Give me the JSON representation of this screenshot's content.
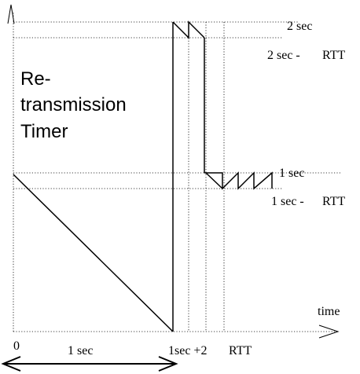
{
  "title_lines": [
    "Re-",
    "transmission",
    "Timer"
  ],
  "axis": {
    "x_label": "time"
  },
  "levels": {
    "two_sec": "2 sec",
    "two_sec_minus": "2 sec -",
    "one_sec": "1 sec",
    "one_sec_minus": "1 sec -",
    "rtt": "RTT"
  },
  "x_ticks": {
    "zero": "0",
    "one_sec_plus": "1sec +2",
    "rtt": "RTT"
  },
  "span_label": "1 sec"
}
